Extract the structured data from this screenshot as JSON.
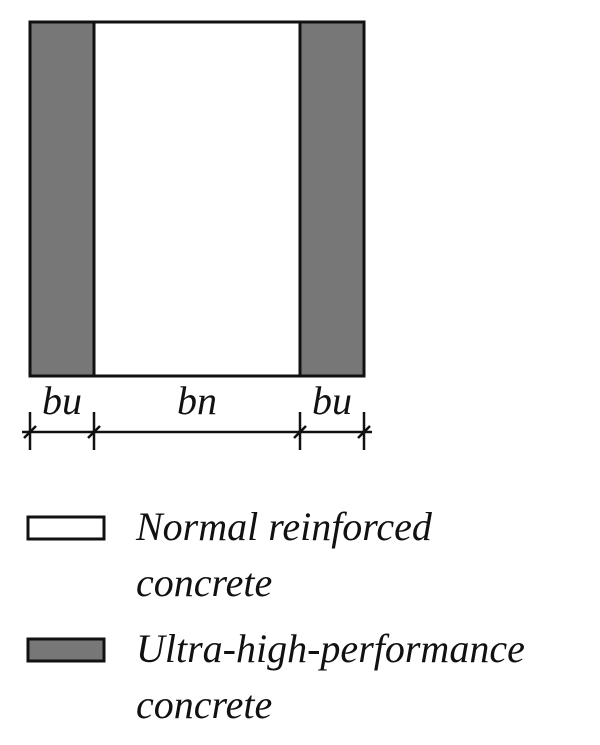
{
  "dimensions": {
    "left": "bu",
    "middle": "bn",
    "right": "bu"
  },
  "legend": [
    {
      "label_line1": "Normal reinforced",
      "label_line2": "concrete"
    },
    {
      "label_line1": "Ultra-high-performance",
      "label_line2": "concrete"
    }
  ]
}
